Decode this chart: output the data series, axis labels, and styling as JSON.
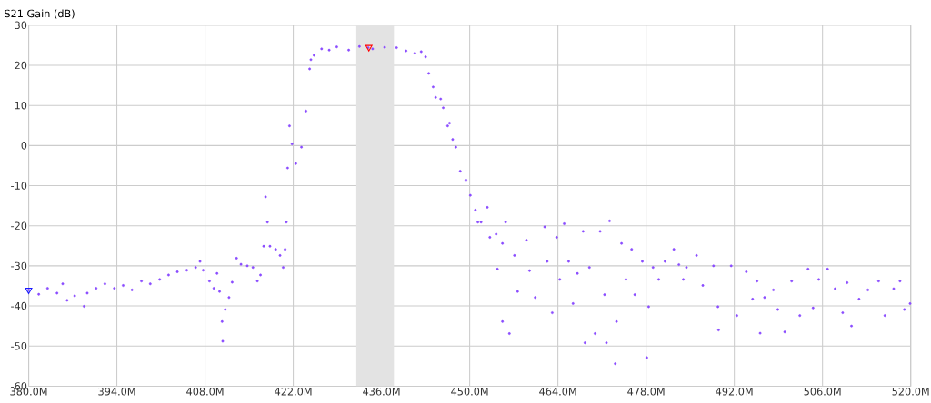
{
  "chart_data": {
    "type": "scatter",
    "ylabel": "S21 Gain (dB)",
    "xlim": [
      380,
      520
    ],
    "ylim": [
      -60,
      30
    ],
    "xticks": [
      {
        "value": 380,
        "label": "380.0M"
      },
      {
        "value": 394,
        "label": "394.0M"
      },
      {
        "value": 408,
        "label": "408.0M"
      },
      {
        "value": 422,
        "label": "422.0M"
      },
      {
        "value": 436,
        "label": "436.0M"
      },
      {
        "value": 450,
        "label": "450.0M"
      },
      {
        "value": 464,
        "label": "464.0M"
      },
      {
        "value": 478,
        "label": "478.0M"
      },
      {
        "value": 492,
        "label": "492.0M"
      },
      {
        "value": 506,
        "label": "506.0M"
      },
      {
        "value": 520,
        "label": "520.0M"
      }
    ],
    "yticks": [
      -60,
      -50,
      -40,
      -30,
      -20,
      -10,
      0,
      10,
      20,
      30
    ],
    "grid": true,
    "marker": "circle",
    "bands": [
      {
        "axis": "x",
        "from": 432,
        "to": 438,
        "color": "#e3e3e3"
      }
    ],
    "series": [
      {
        "color": "#8a4dff",
        "x": [
          380,
          381.6,
          383.0,
          384.5,
          385.4,
          386.1,
          387.3,
          388.8,
          389.3,
          390.7,
          392.1,
          393.6,
          395.0,
          396.4,
          397.9,
          399.3,
          400.8,
          402.2,
          403.6,
          405.1,
          406.5,
          407.2,
          407.7,
          408.7,
          409.4,
          409.9,
          410.3,
          410.7,
          410.8,
          411.2,
          411.8,
          412.3,
          413.0,
          413.7,
          414.7,
          415.6,
          416.3,
          416.8,
          417.3,
          417.6,
          417.9,
          418.3,
          419.2,
          419.9,
          420.4,
          420.7,
          420.9,
          421.1,
          421.4,
          421.8,
          422.4,
          423.3,
          424.0,
          424.6,
          424.8,
          425.3,
          426.5,
          427.7,
          428.9,
          430.8,
          432.5,
          433.9,
          434.6,
          436.5,
          438.4,
          439.9,
          441.3,
          442.3,
          443.0,
          443.5,
          444.2,
          444.6,
          445.4,
          445.8,
          446.5,
          446.8,
          447.3,
          447.8,
          448.5,
          449.4,
          450.1,
          450.9,
          451.3,
          451.8,
          452.8,
          453.2,
          454.2,
          454.4,
          455.2,
          455.2,
          455.7,
          456.3,
          457.1,
          457.6,
          459.0,
          459.5,
          460.4,
          461.9,
          462.3,
          463.1,
          463.8,
          464.3,
          465.0,
          465.7,
          466.4,
          467.1,
          468.0,
          468.3,
          469.0,
          469.9,
          470.7,
          471.4,
          471.7,
          472.2,
          473.1,
          473.3,
          474.1,
          474.8,
          475.7,
          476.2,
          477.4,
          478.1,
          478.4,
          479.1,
          480.0,
          481.0,
          482.4,
          483.2,
          483.9,
          484.4,
          486.0,
          487.0,
          488.7,
          489.4,
          489.5,
          491.5,
          492.4,
          493.9,
          494.9,
          495.6,
          496.1,
          496.8,
          498.2,
          498.9,
          500.0,
          501.1,
          502.4,
          503.7,
          504.5,
          505.4,
          506.8,
          508.0,
          509.2,
          509.9,
          510.6,
          511.8,
          513.2,
          514.9,
          515.9,
          517.3,
          518.3,
          519.0,
          519.9
        ],
        "values": [
          -36,
          -37.1,
          -35.6,
          -36.8,
          -34.5,
          -38.6,
          -37.5,
          -40.1,
          -36.8,
          -35.6,
          -34.5,
          -35.6,
          -34.9,
          -36,
          -33.8,
          -34.5,
          -33.4,
          -32.3,
          -31.5,
          -31.1,
          -30.4,
          -28.9,
          -31.1,
          -33.8,
          -35.6,
          -31.9,
          -36.4,
          -43.9,
          -48.8,
          -40.9,
          -37.9,
          -34.1,
          -28.1,
          -29.6,
          -30.0,
          -30.4,
          -33.8,
          -32.3,
          -25.1,
          -12.8,
          -19.1,
          -25.1,
          -25.9,
          -27.4,
          -30.4,
          -25.9,
          -19.1,
          -5.6,
          4.9,
          0.4,
          -4.5,
          -0.4,
          8.6,
          19.1,
          21.4,
          22.5,
          24.1,
          23.8,
          24.6,
          23.8,
          24.7,
          24.4,
          24.1,
          24.5,
          24.4,
          23.6,
          23.0,
          23.4,
          22.1,
          18.0,
          14.6,
          12.0,
          11.6,
          9.4,
          4.9,
          5.6,
          1.5,
          -0.4,
          -6.4,
          -8.6,
          -12.4,
          -16.1,
          -19.1,
          -19.1,
          -15.4,
          -22.9,
          -22.1,
          -30.8,
          -43.9,
          -24.4,
          -19.1,
          -46.9,
          -27.4,
          -36.4,
          -23.6,
          -31.2,
          -37.9,
          -20.3,
          -28.9,
          -41.7,
          -22.9,
          -33.4,
          -19.5,
          -28.9,
          -39.4,
          -31.9,
          -21.4,
          -49.2,
          -30.4,
          -46.9,
          -21.4,
          -37.2,
          -49.2,
          -18.8,
          -54.4,
          -43.9,
          -24.4,
          -33.4,
          -25.9,
          -37.2,
          -28.9,
          -52.9,
          -40.2,
          -30.4,
          -33.4,
          -28.9,
          -25.9,
          -29.7,
          -33.4,
          -30.4,
          -27.4,
          -34.9,
          -30.0,
          -40.2,
          -46.0,
          -30.0,
          -42.4,
          -31.5,
          -38.3,
          -33.8,
          -46.8,
          -37.9,
          -36.0,
          -40.9,
          -46.5,
          -33.8,
          -42.4,
          -30.8,
          -40.5,
          -33.4,
          -30.8,
          -35.7,
          -41.7,
          -34.2,
          -45.0,
          -38.3,
          -36.0,
          -33.8,
          -42.4,
          -35.7,
          -33.8,
          -40.9,
          -39.4
        ]
      },
      {
        "color": "#ff0000",
        "marker": "triangle",
        "x": [
          434
        ],
        "values": [
          24.5
        ]
      },
      {
        "color": "#1a1aff",
        "marker": "triangle",
        "x": [
          380
        ],
        "values": [
          -36
        ]
      }
    ]
  }
}
